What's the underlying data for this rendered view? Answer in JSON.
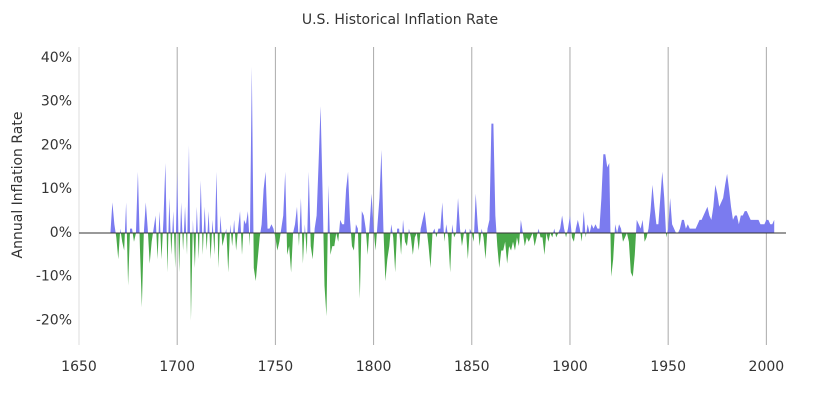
{
  "chart_data": {
    "type": "area",
    "title": "U.S. Historical Inflation Rate",
    "y_label": "Annual Inflation Rate",
    "positive_color": "#7b7bef",
    "negative_color": "#48a848",
    "grid": "x",
    "xlim": [
      1650,
      2010
    ],
    "xticks": [
      1650,
      1700,
      1750,
      1800,
      1850,
      1900,
      1950,
      2000
    ],
    "ylim": [
      -25.6,
      42.5
    ],
    "yticks": [
      {
        "value": -20,
        "label": "-20%"
      },
      {
        "value": -10,
        "label": "-10%"
      },
      {
        "value": 0,
        "label": "0%"
      },
      {
        "value": 10,
        "label": "10%"
      },
      {
        "value": 20,
        "label": "20%"
      },
      {
        "value": 30,
        "label": "30%"
      },
      {
        "value": 40,
        "label": "40%"
      }
    ],
    "x": [
      1666,
      1667,
      1668,
      1669,
      1670,
      1671,
      1672,
      1673,
      1674,
      1675,
      1676,
      1677,
      1678,
      1679,
      1680,
      1681,
      1682,
      1683,
      1684,
      1685,
      1686,
      1687,
      1688,
      1689,
      1690,
      1691,
      1692,
      1693,
      1694,
      1695,
      1696,
      1697,
      1698,
      1699,
      1700,
      1701,
      1702,
      1703,
      1704,
      1705,
      1706,
      1707,
      1708,
      1709,
      1710,
      1711,
      1712,
      1713,
      1714,
      1715,
      1716,
      1717,
      1718,
      1719,
      1720,
      1721,
      1722,
      1723,
      1724,
      1725,
      1726,
      1727,
      1728,
      1729,
      1730,
      1731,
      1732,
      1733,
      1734,
      1735,
      1736,
      1737,
      1738,
      1739,
      1740,
      1741,
      1742,
      1743,
      1744,
      1745,
      1746,
      1747,
      1748,
      1749,
      1750,
      1751,
      1752,
      1753,
      1754,
      1755,
      1756,
      1757,
      1758,
      1759,
      1760,
      1761,
      1762,
      1763,
      1764,
      1765,
      1766,
      1767,
      1768,
      1769,
      1770,
      1771,
      1772,
      1773,
      1774,
      1775,
      1776,
      1777,
      1778,
      1779,
      1780,
      1781,
      1782,
      1783,
      1784,
      1785,
      1786,
      1787,
      1788,
      1789,
      1790,
      1791,
      1792,
      1793,
      1794,
      1795,
      1796,
      1797,
      1798,
      1799,
      1800,
      1801,
      1802,
      1803,
      1804,
      1805,
      1806,
      1807,
      1808,
      1809,
      1810,
      1811,
      1812,
      1813,
      1814,
      1815,
      1816,
      1817,
      1818,
      1819,
      1820,
      1821,
      1822,
      1823,
      1824,
      1825,
      1826,
      1827,
      1828,
      1829,
      1830,
      1831,
      1832,
      1833,
      1834,
      1835,
      1836,
      1837,
      1838,
      1839,
      1840,
      1841,
      1842,
      1843,
      1844,
      1845,
      1846,
      1847,
      1848,
      1849,
      1850,
      1851,
      1852,
      1853,
      1854,
      1855,
      1856,
      1857,
      1858,
      1859,
      1860,
      1861,
      1862,
      1863,
      1864,
      1865,
      1866,
      1867,
      1868,
      1869,
      1870,
      1871,
      1872,
      1873,
      1874,
      1875,
      1876,
      1877,
      1878,
      1879,
      1880,
      1881,
      1882,
      1883,
      1884,
      1885,
      1886,
      1887,
      1888,
      1889,
      1890,
      1891,
      1892,
      1893,
      1894,
      1895,
      1896,
      1897,
      1898,
      1899,
      1900,
      1901,
      1902,
      1903,
      1904,
      1905,
      1906,
      1907,
      1908,
      1909,
      1910,
      1911,
      1912,
      1913,
      1914,
      1915,
      1916,
      1917,
      1918,
      1919,
      1920,
      1921,
      1922,
      1923,
      1924,
      1925,
      1926,
      1927,
      1928,
      1929,
      1930,
      1931,
      1932,
      1933,
      1934,
      1935,
      1936,
      1937,
      1938,
      1939,
      1940,
      1941,
      1942,
      1943,
      1944,
      1945,
      1946,
      1947,
      1948,
      1949,
      1950,
      1951,
      1952,
      1953,
      1954,
      1955,
      1956,
      1957,
      1958,
      1959,
      1960,
      1961,
      1962,
      1963,
      1964,
      1965,
      1966,
      1967,
      1968,
      1969,
      1970,
      1971,
      1972,
      1973,
      1974,
      1975,
      1976,
      1977,
      1978,
      1979,
      1980,
      1981,
      1982,
      1983,
      1984,
      1985,
      1986,
      1987,
      1988,
      1989,
      1990,
      1991,
      1992,
      1993,
      1994,
      1995,
      1996,
      1997,
      1998,
      1999,
      2000,
      2001,
      2002,
      2003,
      2004
    ],
    "values": [
      0,
      7,
      2,
      -1,
      -6,
      1,
      -2,
      -4,
      7,
      -12,
      1,
      1,
      -2,
      0,
      14,
      -3,
      -17,
      0,
      7,
      1,
      -7,
      -2,
      1,
      4,
      -6,
      5,
      -6,
      3,
      16,
      -9,
      8,
      -5,
      5,
      -8,
      14,
      -9,
      7,
      -4,
      6,
      -5,
      20,
      -20,
      3,
      -8,
      6,
      -6,
      12,
      -5,
      6,
      -4,
      5,
      -6,
      3,
      -5,
      14,
      -8,
      4,
      -3,
      -1,
      1,
      -9,
      2,
      -3,
      3,
      -4,
      1,
      5,
      -5,
      3,
      2,
      5,
      -3,
      38,
      -8,
      -11,
      -6,
      -1,
      2,
      10,
      14,
      1,
      1,
      2,
      1,
      -1,
      -4,
      -2,
      1,
      4,
      14,
      -5,
      -3,
      -9,
      0,
      2,
      6,
      -3,
      8,
      -7,
      2,
      -5,
      14,
      -3,
      -6,
      1,
      4,
      16,
      29,
      10,
      -12,
      -19,
      11,
      -5,
      -3,
      -3,
      0,
      -2,
      3,
      2,
      2,
      10,
      14,
      3,
      -3,
      -4,
      2,
      1,
      -15,
      5,
      4,
      1,
      -5,
      2,
      9,
      1,
      -4,
      2,
      8,
      19,
      1,
      -11,
      -6,
      -3,
      2,
      -1,
      -9,
      1,
      1,
      -5,
      3,
      -2,
      -3,
      1,
      -1,
      -5,
      -1,
      0,
      -4,
      1,
      3,
      5,
      1,
      -3,
      -8,
      0,
      1,
      -1,
      1,
      1,
      7,
      -2,
      2,
      -1,
      -9,
      2,
      -1,
      0,
      8,
      1,
      -3,
      0,
      1,
      -6,
      1,
      0,
      -2,
      9,
      2,
      -3,
      1,
      -1,
      -6,
      1,
      3,
      25,
      25,
      4,
      -3,
      -8,
      -4,
      -4,
      -2,
      -7,
      -3,
      -4,
      -2,
      -4,
      -1,
      -3,
      3,
      0,
      -3,
      -1,
      -2,
      -1,
      0,
      -3,
      -1,
      1,
      -1,
      -1,
      -5,
      0,
      -2,
      0,
      -1,
      1,
      -1,
      0,
      1,
      4,
      1,
      -1,
      1,
      4,
      -1,
      -2,
      1,
      3,
      1,
      -2,
      5,
      -1,
      2,
      0,
      2,
      1,
      2,
      1,
      1,
      8,
      18,
      18,
      15,
      16,
      -10,
      -6,
      2,
      0,
      2,
      1,
      -2,
      -1,
      0,
      -2,
      -9,
      -10,
      -5,
      3,
      2,
      1,
      3,
      -2,
      -1,
      1,
      5,
      11,
      6,
      2,
      2,
      8,
      14,
      8,
      -1,
      1,
      8,
      2,
      1,
      0,
      0,
      1,
      3,
      3,
      1,
      2,
      1,
      1,
      1,
      1,
      2,
      3,
      3,
      4,
      5,
      6,
      4,
      3,
      6,
      11,
      9,
      6,
      7,
      8,
      11,
      13.5,
      10,
      6,
      3,
      4,
      4,
      2,
      4,
      4,
      5,
      5,
      4,
      3,
      3,
      3,
      3,
      3,
      2,
      2,
      2,
      3,
      3,
      2,
      2,
      3
    ]
  }
}
